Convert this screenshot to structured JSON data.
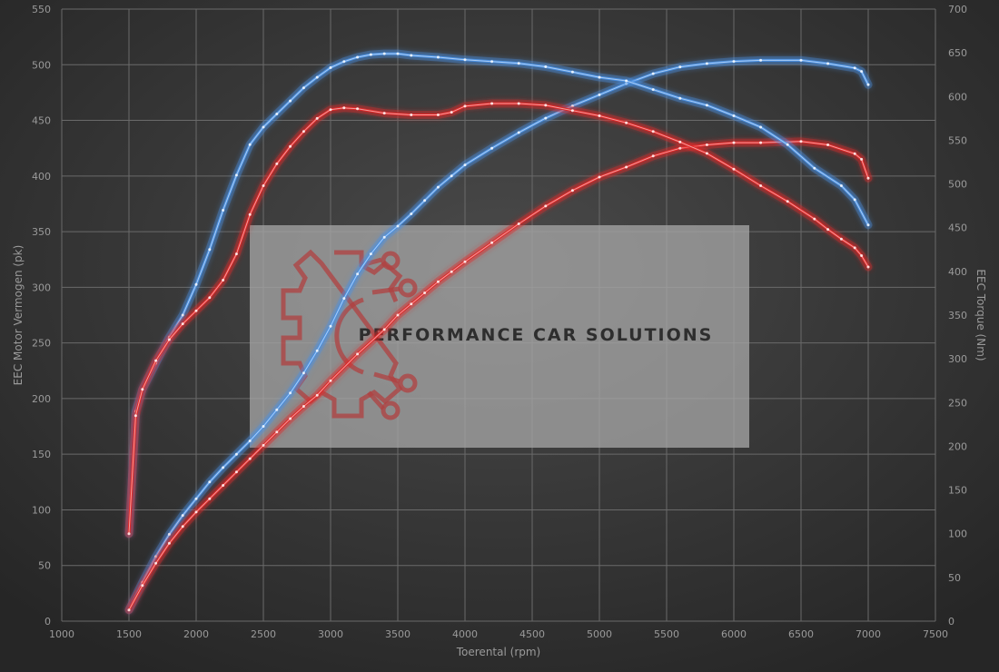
{
  "chart_data": {
    "type": "line",
    "xlabel": "Toerental (rpm)",
    "ylabel": "EEC Motor Vermogen (pk)",
    "y2label": "EEC Torque (Nm)",
    "xlim": [
      1000,
      7500
    ],
    "ylim": [
      0,
      550
    ],
    "y2lim": [
      0,
      700
    ],
    "x_ticks": [
      1000,
      1500,
      2000,
      2500,
      3000,
      3500,
      4000,
      4500,
      5000,
      5500,
      6000,
      6500,
      7000,
      7500
    ],
    "y_ticks": [
      0,
      50,
      100,
      150,
      200,
      250,
      300,
      350,
      400,
      450,
      500,
      550
    ],
    "y2_ticks": [
      0,
      50,
      100,
      150,
      200,
      250,
      300,
      350,
      400,
      450,
      500,
      550,
      600,
      650,
      700
    ],
    "grid": true,
    "series": [
      {
        "axis": "left",
        "color": "#4a90e2",
        "points": [
          [
            1500,
            10
          ],
          [
            1600,
            35
          ],
          [
            1700,
            58
          ],
          [
            1800,
            78
          ],
          [
            1900,
            95
          ],
          [
            2000,
            110
          ],
          [
            2100,
            125
          ],
          [
            2200,
            138
          ],
          [
            2300,
            150
          ],
          [
            2400,
            162
          ],
          [
            2500,
            175
          ],
          [
            2600,
            190
          ],
          [
            2700,
            205
          ],
          [
            2800,
            223
          ],
          [
            2900,
            243
          ],
          [
            3000,
            265
          ],
          [
            3100,
            290
          ],
          [
            3200,
            312
          ],
          [
            3300,
            330
          ],
          [
            3400,
            345
          ],
          [
            3500,
            355
          ],
          [
            3600,
            366
          ],
          [
            3700,
            378
          ],
          [
            3800,
            390
          ],
          [
            3900,
            400
          ],
          [
            4000,
            410
          ],
          [
            4200,
            425
          ],
          [
            4400,
            439
          ],
          [
            4600,
            452
          ],
          [
            4800,
            463
          ],
          [
            5000,
            473
          ],
          [
            5200,
            483
          ],
          [
            5400,
            492
          ],
          [
            5600,
            498
          ],
          [
            5800,
            501
          ],
          [
            6000,
            503
          ],
          [
            6200,
            504
          ],
          [
            6500,
            504
          ],
          [
            6700,
            501
          ],
          [
            6900,
            497
          ],
          [
            6950,
            494
          ],
          [
            7000,
            482
          ]
        ]
      },
      {
        "axis": "left",
        "color": "#e02828",
        "points": [
          [
            1500,
            10
          ],
          [
            1600,
            32
          ],
          [
            1700,
            52
          ],
          [
            1800,
            70
          ],
          [
            1900,
            85
          ],
          [
            2000,
            98
          ],
          [
            2100,
            110
          ],
          [
            2200,
            122
          ],
          [
            2300,
            134
          ],
          [
            2400,
            146
          ],
          [
            2500,
            158
          ],
          [
            2600,
            170
          ],
          [
            2700,
            182
          ],
          [
            2800,
            193
          ],
          [
            2900,
            203
          ],
          [
            3000,
            216
          ],
          [
            3200,
            240
          ],
          [
            3400,
            262
          ],
          [
            3500,
            275
          ],
          [
            3600,
            285
          ],
          [
            3700,
            295
          ],
          [
            3800,
            305
          ],
          [
            3900,
            314
          ],
          [
            4000,
            323
          ],
          [
            4200,
            340
          ],
          [
            4400,
            357
          ],
          [
            4600,
            373
          ],
          [
            4800,
            387
          ],
          [
            5000,
            399
          ],
          [
            5200,
            408
          ],
          [
            5400,
            418
          ],
          [
            5600,
            425
          ],
          [
            5800,
            428
          ],
          [
            6000,
            430
          ],
          [
            6200,
            430
          ],
          [
            6500,
            431
          ],
          [
            6700,
            428
          ],
          [
            6900,
            420
          ],
          [
            6950,
            415
          ],
          [
            7000,
            398
          ]
        ]
      },
      {
        "axis": "right",
        "color": "#4a90e2",
        "points": [
          [
            1500,
            100
          ],
          [
            1550,
            240
          ],
          [
            1600,
            265
          ],
          [
            1700,
            295
          ],
          [
            1800,
            325
          ],
          [
            1900,
            350
          ],
          [
            2000,
            385
          ],
          [
            2100,
            425
          ],
          [
            2200,
            470
          ],
          [
            2300,
            510
          ],
          [
            2400,
            545
          ],
          [
            2500,
            565
          ],
          [
            2600,
            580
          ],
          [
            2700,
            595
          ],
          [
            2800,
            610
          ],
          [
            2900,
            622
          ],
          [
            3000,
            633
          ],
          [
            3100,
            640
          ],
          [
            3200,
            645
          ],
          [
            3300,
            648
          ],
          [
            3400,
            649
          ],
          [
            3500,
            649
          ],
          [
            3600,
            647
          ],
          [
            3800,
            645
          ],
          [
            4000,
            642
          ],
          [
            4200,
            640
          ],
          [
            4400,
            638
          ],
          [
            4600,
            634
          ],
          [
            4800,
            628
          ],
          [
            5000,
            622
          ],
          [
            5200,
            618
          ],
          [
            5400,
            608
          ],
          [
            5600,
            598
          ],
          [
            5800,
            590
          ],
          [
            6000,
            578
          ],
          [
            6200,
            565
          ],
          [
            6400,
            545
          ],
          [
            6600,
            518
          ],
          [
            6800,
            498
          ],
          [
            6900,
            482
          ],
          [
            7000,
            453
          ]
        ]
      },
      {
        "axis": "right",
        "color": "#e02828",
        "points": [
          [
            1500,
            100
          ],
          [
            1550,
            235
          ],
          [
            1600,
            265
          ],
          [
            1700,
            298
          ],
          [
            1800,
            322
          ],
          [
            1900,
            340
          ],
          [
            2000,
            355
          ],
          [
            2100,
            370
          ],
          [
            2200,
            390
          ],
          [
            2300,
            420
          ],
          [
            2400,
            465
          ],
          [
            2500,
            498
          ],
          [
            2600,
            523
          ],
          [
            2700,
            543
          ],
          [
            2800,
            560
          ],
          [
            2900,
            575
          ],
          [
            3000,
            585
          ],
          [
            3100,
            587
          ],
          [
            3200,
            586
          ],
          [
            3400,
            581
          ],
          [
            3600,
            579
          ],
          [
            3800,
            579
          ],
          [
            3900,
            582
          ],
          [
            4000,
            589
          ],
          [
            4200,
            592
          ],
          [
            4400,
            592
          ],
          [
            4600,
            590
          ],
          [
            4800,
            584
          ],
          [
            5000,
            578
          ],
          [
            5200,
            570
          ],
          [
            5400,
            560
          ],
          [
            5600,
            548
          ],
          [
            5800,
            535
          ],
          [
            6000,
            517
          ],
          [
            6200,
            498
          ],
          [
            6400,
            480
          ],
          [
            6600,
            460
          ],
          [
            6700,
            448
          ],
          [
            6800,
            437
          ],
          [
            6900,
            427
          ],
          [
            6950,
            418
          ],
          [
            7000,
            405
          ]
        ]
      }
    ]
  },
  "watermark": {
    "text": "PERFORMANCE CAR SOLUTIONS"
  }
}
